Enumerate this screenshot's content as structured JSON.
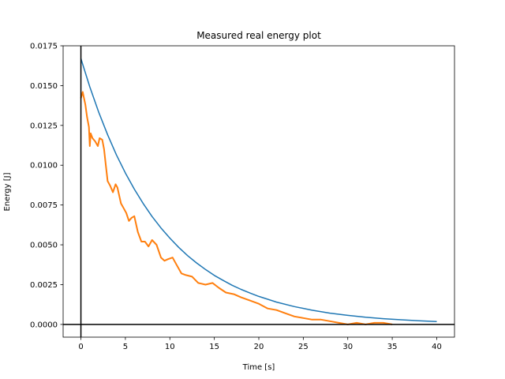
{
  "chart_data": {
    "type": "line",
    "title": "Measured real energy plot",
    "xlabel": "Time [s]",
    "ylabel": "Energy [J]",
    "xlim": [
      -2,
      42
    ],
    "ylim": [
      -0.0008,
      0.0175
    ],
    "x_ticks": [
      0,
      5,
      10,
      15,
      20,
      25,
      30,
      35,
      40
    ],
    "y_ticks": [
      0.0,
      0.0025,
      0.005,
      0.0075,
      0.01,
      0.0125,
      0.015,
      0.0175
    ],
    "x_tick_labels": [
      "0",
      "5",
      "10",
      "15",
      "20",
      "25",
      "30",
      "35",
      "40"
    ],
    "y_tick_labels": [
      "0.0000",
      "0.0025",
      "0.0050",
      "0.0075",
      "0.0100",
      "0.0125",
      "0.0150",
      "0.0175"
    ],
    "reference_lines": {
      "x": 0,
      "y": 0,
      "color": "#000000"
    },
    "grid": false,
    "legend": "none",
    "series": [
      {
        "color": "#1f77b4",
        "x": [
          0,
          1,
          2,
          3,
          4,
          5,
          6,
          7,
          8,
          9,
          10,
          11,
          12,
          13,
          14,
          15,
          16,
          17,
          18,
          19,
          20,
          22,
          24,
          26,
          28,
          30,
          32,
          34,
          36,
          38,
          40
        ],
        "y": [
          0.0167,
          0.01492,
          0.01333,
          0.01191,
          0.01064,
          0.00951,
          0.0085,
          0.00759,
          0.00678,
          0.00606,
          0.00542,
          0.00484,
          0.00432,
          0.00386,
          0.00345,
          0.00308,
          0.00276,
          0.00246,
          0.0022,
          0.00197,
          0.00176,
          0.0014,
          0.00112,
          0.00089,
          0.00071,
          0.00057,
          0.00045,
          0.00036,
          0.00029,
          0.00023,
          0.00018
        ]
      },
      {
        "color": "#ff7f0e",
        "x": [
          0.0,
          0.2,
          0.5,
          0.7,
          0.9,
          1.0,
          1.1,
          1.3,
          1.6,
          1.9,
          2.1,
          2.4,
          2.6,
          2.8,
          3.0,
          3.3,
          3.6,
          3.9,
          4.1,
          4.5,
          4.8,
          5.1,
          5.4,
          5.7,
          6.0,
          6.4,
          6.8,
          7.2,
          7.6,
          8.0,
          8.5,
          9.0,
          9.4,
          9.8,
          10.3,
          10.8,
          11.3,
          11.8,
          12.5,
          13.2,
          14.0,
          14.8,
          15.5,
          16.3,
          17.2,
          18.0,
          19.0,
          20.0,
          21.0,
          22.0,
          23.0,
          24.0,
          25.0,
          26.0,
          27.0,
          28.0,
          29.0,
          30.0,
          31.0,
          32.0,
          33.0,
          34.0,
          35.0
        ],
        "y": [
          0.0142,
          0.0146,
          0.0138,
          0.013,
          0.0124,
          0.0112,
          0.012,
          0.0117,
          0.0115,
          0.0112,
          0.0117,
          0.0116,
          0.011,
          0.01,
          0.009,
          0.0087,
          0.0083,
          0.0088,
          0.0086,
          0.0076,
          0.0073,
          0.007,
          0.0065,
          0.0067,
          0.0068,
          0.0058,
          0.0052,
          0.0052,
          0.0049,
          0.0053,
          0.005,
          0.0042,
          0.004,
          0.0041,
          0.0042,
          0.0037,
          0.0032,
          0.0031,
          0.003,
          0.0026,
          0.0025,
          0.0026,
          0.0023,
          0.002,
          0.0019,
          0.0017,
          0.0015,
          0.0013,
          0.001,
          0.0009,
          0.0007,
          0.0005,
          0.0004,
          0.0003,
          0.0003,
          0.0002,
          0.0001,
          0.0,
          0.0001,
          0.0,
          0.0001,
          0.0001,
          0.0
        ]
      }
    ]
  }
}
